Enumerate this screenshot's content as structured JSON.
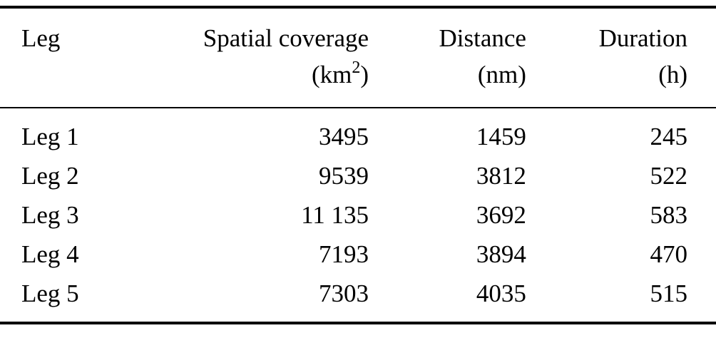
{
  "table": {
    "columns": [
      {
        "label": "Leg",
        "unit": ""
      },
      {
        "label": "Spatial coverage",
        "unit_prefix": "(km",
        "unit_sup": "2",
        "unit_suffix": ")"
      },
      {
        "label": "Distance",
        "unit": "(nm)"
      },
      {
        "label": "Duration",
        "unit": "(h)"
      }
    ],
    "rows": [
      {
        "leg": "Leg 1",
        "spatial_coverage": "3495",
        "distance": "1459",
        "duration": "245"
      },
      {
        "leg": "Leg 2",
        "spatial_coverage": "9539",
        "distance": "3812",
        "duration": "522"
      },
      {
        "leg": "Leg 3",
        "spatial_coverage": "11 135",
        "distance": "3692",
        "duration": "583"
      },
      {
        "leg": "Leg 4",
        "spatial_coverage": "7193",
        "distance": "3894",
        "duration": "470"
      },
      {
        "leg": "Leg 5",
        "spatial_coverage": "7303",
        "distance": "4035",
        "duration": "515"
      }
    ]
  }
}
